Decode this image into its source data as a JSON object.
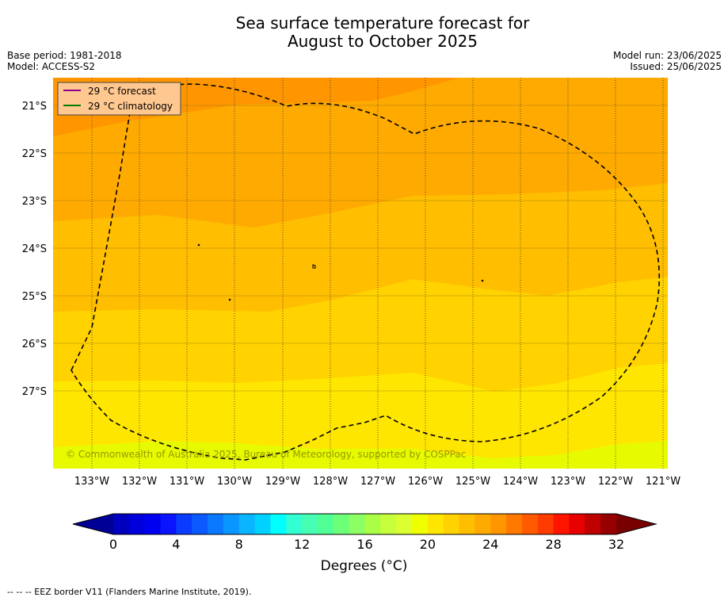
{
  "title_line1": "Sea surface temperature forecast for",
  "title_line2": "August to October 2025",
  "base_period": "Base period: 1981-2018",
  "model": "Model: ACCESS-S2",
  "model_run": "Model run: 23/06/2025",
  "issued": "Issued: 25/06/2025",
  "legend": [
    {
      "label": "29 °C  forecast",
      "color": "#8b008b"
    },
    {
      "label": "29 °C  climatology",
      "color": "#008000"
    }
  ],
  "copyright": "© Commonwealth of Australia 2025, Bureau of Meteorology, supported by COSPPac",
  "lat_labels": [
    "21°S",
    "22°S",
    "23°S",
    "24°S",
    "25°S",
    "26°S",
    "27°S"
  ],
  "lon_labels": [
    "133°W",
    "132°W",
    "131°W",
    "130°W",
    "129°W",
    "128°W",
    "127°W",
    "126°W",
    "125°W",
    "124°W",
    "123°W",
    "122°W",
    "121°W"
  ],
  "colorbar": {
    "tick_labels": [
      "0",
      "4",
      "8",
      "12",
      "16",
      "20",
      "24",
      "28",
      "32"
    ],
    "title": "Degrees (°C)",
    "colors": [
      "#000096",
      "#0000be",
      "#0000dc",
      "#0000f0",
      "#0a14ff",
      "#0a3cff",
      "#0a5aff",
      "#0a78ff",
      "#0a96ff",
      "#0ab4ff",
      "#00d2ff",
      "#00ffff",
      "#32ffd2",
      "#46ffb4",
      "#50ff96",
      "#6eff78",
      "#8cff64",
      "#aaff46",
      "#c8ff3c",
      "#dcff32",
      "#f0ff00",
      "#ffe600",
      "#ffd200",
      "#ffbe00",
      "#ffaa00",
      "#ff9600",
      "#ff7800",
      "#ff5a00",
      "#ff3c00",
      "#ff1400",
      "#e60000",
      "#be0000",
      "#960000",
      "#780000"
    ]
  },
  "footer": "--  --  -- EEZ border V11 (Flanders Marine Institute, 2019)."
}
